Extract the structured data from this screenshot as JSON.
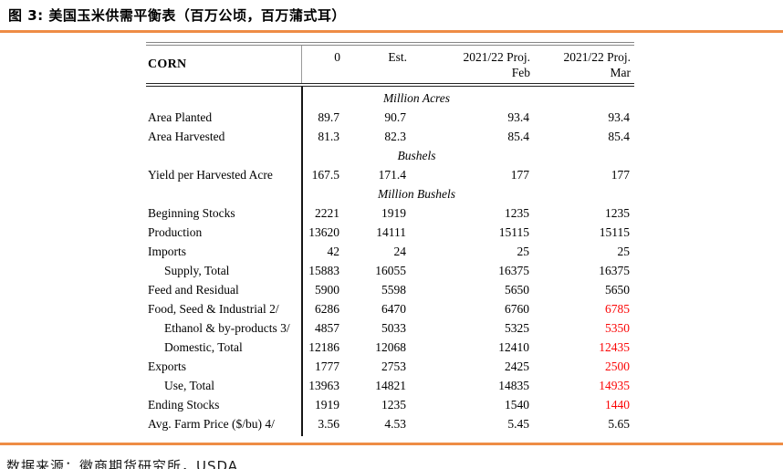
{
  "page": {
    "title": "图 3: 美国玉米供需平衡表（百万公顷，百万蒲式耳）",
    "footer": "数据来源：徽商期货研究所，USDA",
    "accent_color": "#EE8C45",
    "highlight_color": "#FB0505"
  },
  "table": {
    "corner_label": "CORN",
    "columns": [
      {
        "line1": "0",
        "line2": ""
      },
      {
        "line1": "Est.",
        "line2": ""
      },
      {
        "line1": "2021/22 Proj.",
        "line2": "Feb"
      },
      {
        "line1": "2021/22 Proj.",
        "line2": "Mar"
      }
    ],
    "rows": [
      {
        "type": "unit",
        "label": "Million Acres"
      },
      {
        "type": "data",
        "label": "Area Planted",
        "indent": false,
        "values": [
          "89.7",
          "90.7",
          "93.4",
          "93.4"
        ],
        "red_last": false
      },
      {
        "type": "data",
        "label": "Area Harvested",
        "indent": false,
        "values": [
          "81.3",
          "82.3",
          "85.4",
          "85.4"
        ],
        "red_last": false
      },
      {
        "type": "unit",
        "label": "Bushels"
      },
      {
        "type": "data",
        "label": "Yield per Harvested Acre",
        "indent": false,
        "values": [
          "167.5",
          "171.4",
          "177",
          "177"
        ],
        "red_last": false
      },
      {
        "type": "unit",
        "label": "Million Bushels"
      },
      {
        "type": "data",
        "label": "Beginning Stocks",
        "indent": false,
        "values": [
          "2221",
          "1919",
          "1235",
          "1235"
        ],
        "red_last": false
      },
      {
        "type": "data",
        "label": "Production",
        "indent": false,
        "values": [
          "13620",
          "14111",
          "15115",
          "15115"
        ],
        "red_last": false
      },
      {
        "type": "data",
        "label": "Imports",
        "indent": false,
        "values": [
          "42",
          "24",
          "25",
          "25"
        ],
        "red_last": false
      },
      {
        "type": "data",
        "label": "Supply, Total",
        "indent": true,
        "values": [
          "15883",
          "16055",
          "16375",
          "16375"
        ],
        "red_last": false
      },
      {
        "type": "data",
        "label": "Feed and Residual",
        "indent": false,
        "values": [
          "5900",
          "5598",
          "5650",
          "5650"
        ],
        "red_last": false
      },
      {
        "type": "data",
        "label": "Food, Seed & Industrial 2/",
        "indent": false,
        "values": [
          "6286",
          "6470",
          "6760",
          "6785"
        ],
        "red_last": true
      },
      {
        "type": "data",
        "label": "Ethanol & by-products 3/",
        "indent": true,
        "values": [
          "4857",
          "5033",
          "5325",
          "5350"
        ],
        "red_last": true
      },
      {
        "type": "data",
        "label": "Domestic, Total",
        "indent": true,
        "values": [
          "12186",
          "12068",
          "12410",
          "12435"
        ],
        "red_last": true
      },
      {
        "type": "data",
        "label": "Exports",
        "indent": false,
        "values": [
          "1777",
          "2753",
          "2425",
          "2500"
        ],
        "red_last": true
      },
      {
        "type": "data",
        "label": "Use, Total",
        "indent": true,
        "values": [
          "13963",
          "14821",
          "14835",
          "14935"
        ],
        "red_last": true
      },
      {
        "type": "data",
        "label": "Ending Stocks",
        "indent": false,
        "values": [
          "1919",
          "1235",
          "1540",
          "1440"
        ],
        "red_last": true
      },
      {
        "type": "data",
        "label": "Avg. Farm Price ($/bu)  4/",
        "indent": false,
        "values": [
          "3.56",
          "4.53",
          "5.45",
          "5.65"
        ],
        "red_last": false
      }
    ]
  }
}
